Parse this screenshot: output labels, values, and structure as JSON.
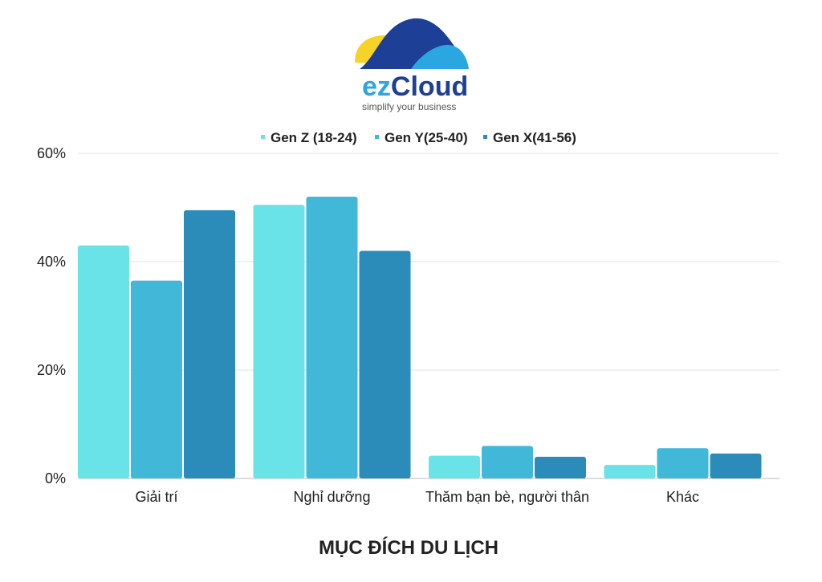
{
  "logo": {
    "brand_ez": "ez",
    "brand_cloud": "Cloud",
    "tagline": "simplify your business"
  },
  "colors": {
    "gen_z": "#6ae3e8",
    "gen_y": "#42b8d8",
    "gen_x": "#2b8bb9",
    "grid": "#e3e3e3",
    "logo_dark": "#1d3f95",
    "logo_light": "#2aa7e0",
    "logo_yellow": "#f5d327"
  },
  "chart_data": {
    "type": "bar",
    "categories": [
      "Giải trí",
      "Nghỉ dưỡng",
      "Thăm bạn bè, người thân",
      "Khác"
    ],
    "series": [
      {
        "name": "Gen Z (18-24)",
        "values": [
          43,
          50.5,
          4.2,
          2.5
        ]
      },
      {
        "name": "Gen Y(25-40)",
        "values": [
          36.5,
          52,
          6,
          5.6
        ]
      },
      {
        "name": "Gen X(41-56)",
        "values": [
          49.5,
          42,
          4,
          4.6
        ]
      }
    ],
    "xlabel": "MỤC ĐÍCH DU LỊCH",
    "ylabel": "",
    "ylim": [
      0,
      60
    ],
    "yticks": [
      "0%",
      "20%",
      "40%",
      "60%"
    ],
    "ytick_values": [
      0,
      20,
      40,
      60
    ],
    "grid": true,
    "legend_position": "top-center"
  }
}
